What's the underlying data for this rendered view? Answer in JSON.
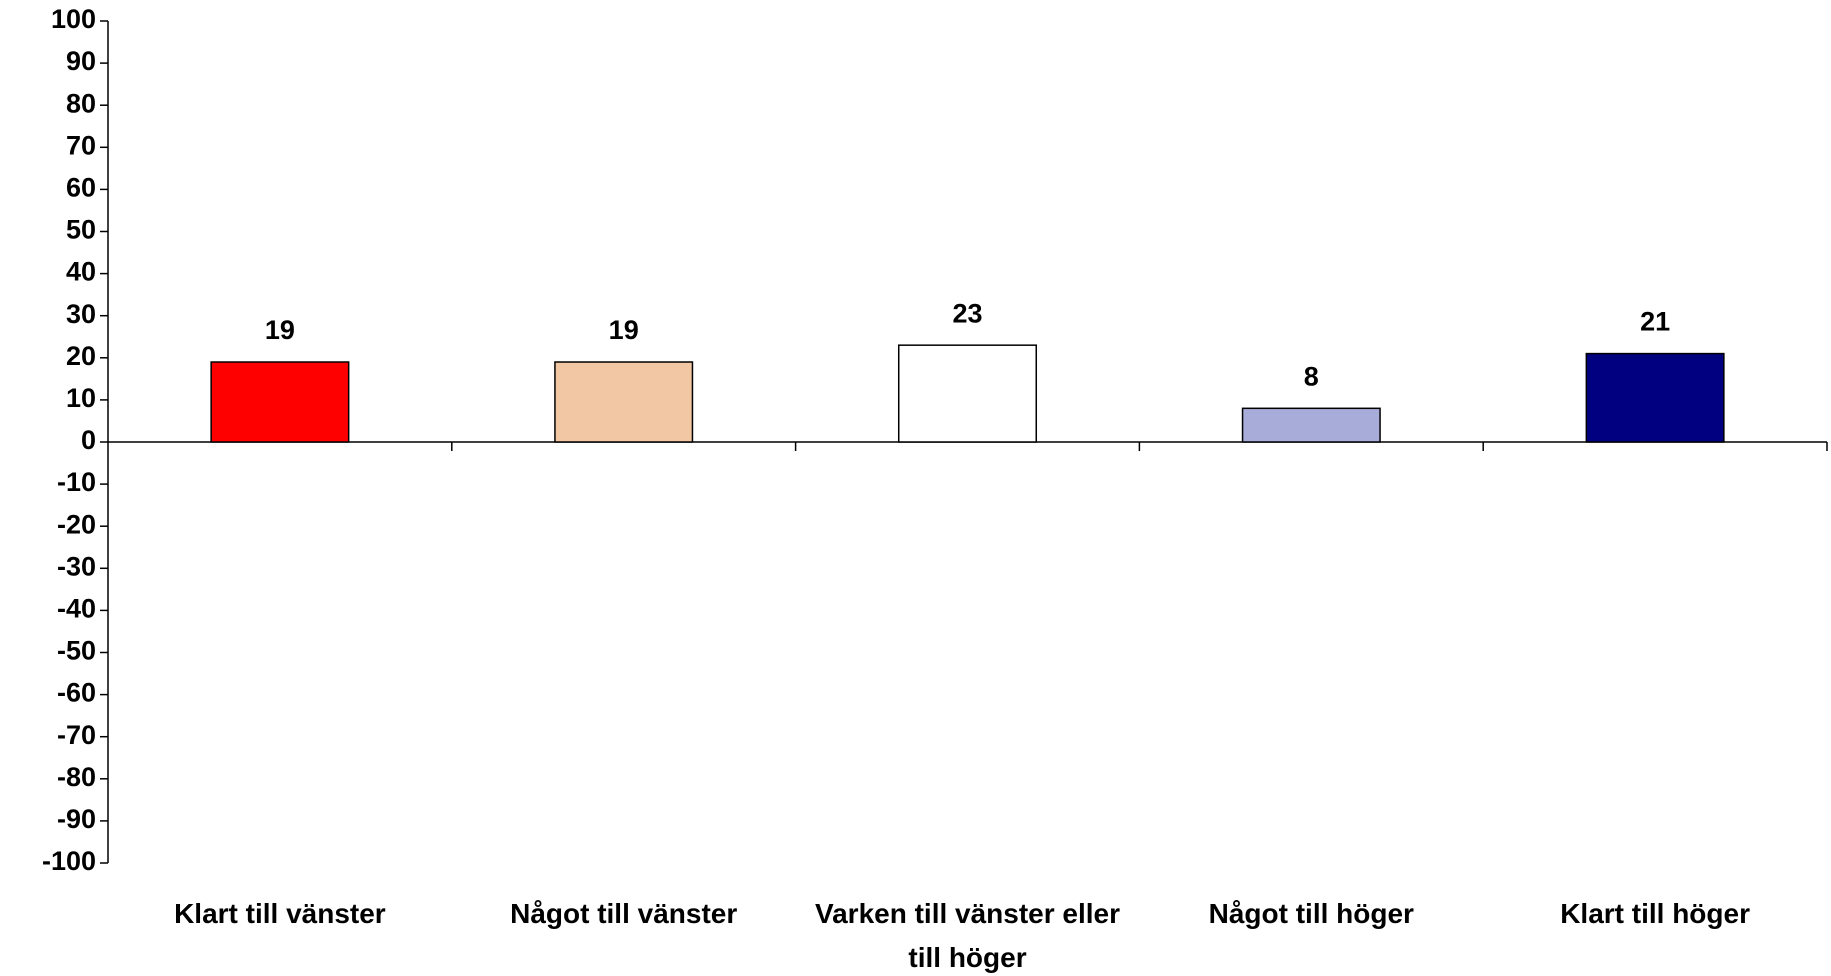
{
  "chart_data": {
    "type": "bar",
    "categories": [
      "Klart till vänster",
      "Något till vänster",
      "Varken till vänster eller till höger",
      "Något till höger",
      "Klart till höger"
    ],
    "values": [
      19,
      19,
      23,
      8,
      21
    ],
    "colors": [
      "#ff0000",
      "#f2c8a4",
      "#ffffff",
      "#a8acd8",
      "#000080"
    ],
    "ylim": [
      -100,
      100
    ],
    "yticks": [
      -100,
      -90,
      -80,
      -70,
      -60,
      -50,
      -40,
      -30,
      -20,
      -10,
      0,
      10,
      20,
      30,
      40,
      50,
      60,
      70,
      80,
      90,
      100
    ],
    "grid": false
  }
}
